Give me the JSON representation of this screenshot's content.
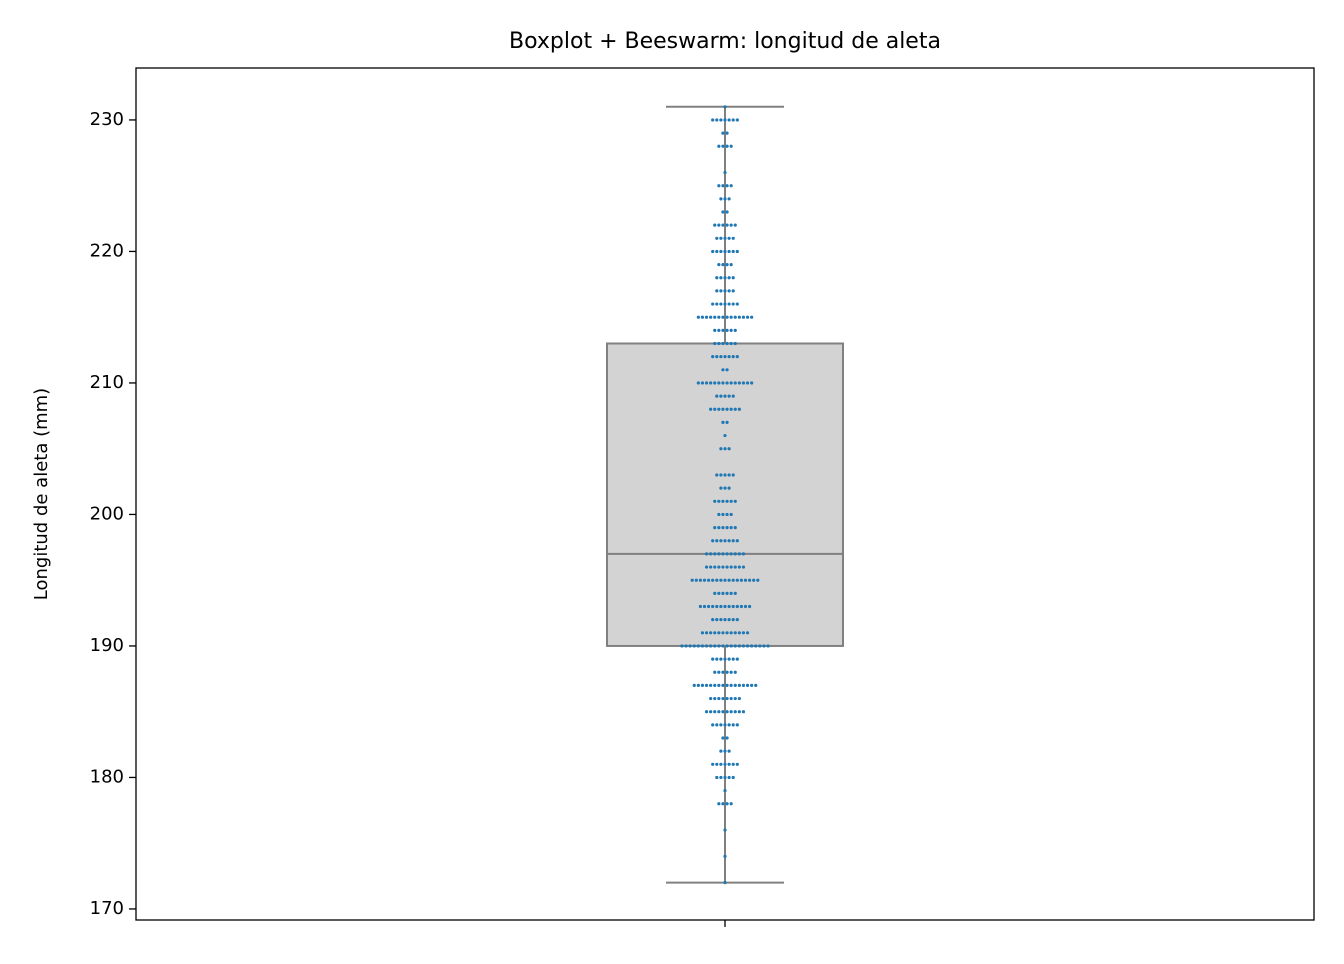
{
  "chart_data": {
    "type": "box",
    "title": "Boxplot + Beeswarm: longitud de aleta",
    "ylabel": "Longitud de aleta (mm)",
    "categories": [
      null
    ],
    "box": {
      "whisker_low": 172,
      "q1": 190,
      "median": 197,
      "q3": 213,
      "whisker_high": 231
    },
    "box_color": "#d3d3d3",
    "box_edge": "#808080",
    "point_color": "#1f77b4",
    "values": [
      172,
      174,
      176,
      178,
      178,
      178,
      178,
      179,
      180,
      180,
      180,
      180,
      180,
      181,
      181,
      181,
      181,
      181,
      181,
      181,
      182,
      182,
      182,
      183,
      183,
      184,
      184,
      184,
      184,
      184,
      184,
      184,
      185,
      185,
      185,
      185,
      185,
      185,
      185,
      185,
      185,
      185,
      186,
      186,
      186,
      186,
      186,
      186,
      186,
      186,
      187,
      187,
      187,
      187,
      187,
      187,
      187,
      187,
      187,
      187,
      187,
      187,
      187,
      187,
      187,
      187,
      188,
      188,
      188,
      188,
      188,
      188,
      189,
      189,
      189,
      189,
      189,
      189,
      189,
      190,
      190,
      190,
      190,
      190,
      190,
      190,
      190,
      190,
      190,
      190,
      190,
      190,
      190,
      190,
      190,
      190,
      190,
      190,
      190,
      190,
      190,
      191,
      191,
      191,
      191,
      191,
      191,
      191,
      191,
      191,
      191,
      191,
      191,
      192,
      192,
      192,
      192,
      192,
      192,
      192,
      193,
      193,
      193,
      193,
      193,
      193,
      193,
      193,
      193,
      193,
      193,
      193,
      193,
      194,
      194,
      194,
      194,
      194,
      194,
      195,
      195,
      195,
      195,
      195,
      195,
      195,
      195,
      195,
      195,
      195,
      195,
      195,
      195,
      195,
      195,
      195,
      196,
      196,
      196,
      196,
      196,
      196,
      196,
      196,
      196,
      196,
      197,
      197,
      197,
      197,
      197,
      197,
      197,
      197,
      197,
      197,
      198,
      198,
      198,
      198,
      198,
      198,
      198,
      199,
      199,
      199,
      199,
      199,
      199,
      200,
      200,
      200,
      200,
      201,
      201,
      201,
      201,
      201,
      201,
      202,
      202,
      202,
      203,
      203,
      203,
      203,
      203,
      205,
      205,
      205,
      206,
      207,
      207,
      208,
      208,
      208,
      208,
      208,
      208,
      208,
      208,
      209,
      209,
      209,
      209,
      209,
      210,
      210,
      210,
      210,
      210,
      210,
      210,
      210,
      210,
      210,
      210,
      210,
      210,
      210,
      211,
      211,
      212,
      212,
      212,
      212,
      212,
      212,
      212,
      213,
      213,
      213,
      213,
      213,
      213,
      214,
      214,
      214,
      214,
      214,
      214,
      215,
      215,
      215,
      215,
      215,
      215,
      215,
      215,
      215,
      215,
      215,
      215,
      215,
      215,
      216,
      216,
      216,
      216,
      216,
      216,
      216,
      217,
      217,
      217,
      217,
      217,
      218,
      218,
      218,
      218,
      218,
      219,
      219,
      219,
      219,
      220,
      220,
      220,
      220,
      220,
      220,
      220,
      221,
      221,
      221,
      221,
      221,
      222,
      222,
      222,
      222,
      222,
      222,
      223,
      223,
      224,
      224,
      224,
      225,
      225,
      225,
      225,
      226,
      228,
      228,
      228,
      228,
      229,
      229,
      230,
      230,
      230,
      230,
      230,
      230,
      230,
      231
    ],
    "ylim": [
      169.16,
      233.95
    ],
    "yticks": [
      170,
      180,
      190,
      200,
      210,
      220,
      230
    ]
  }
}
